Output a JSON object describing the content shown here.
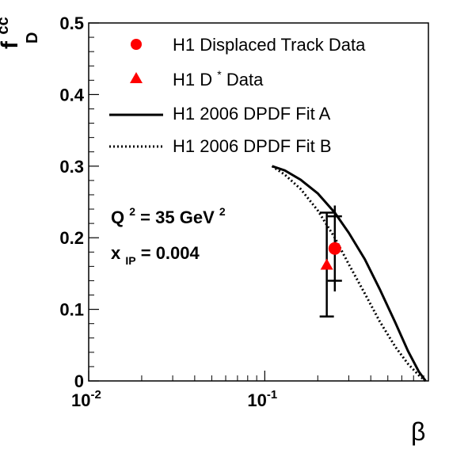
{
  "chart_data": {
    "type": "scatter",
    "ylabel": {
      "base": "f",
      "sup": "cc̄",
      "sub": "D"
    },
    "xlabel": "β",
    "x_scale": "log",
    "xlim": [
      0.01,
      0.85
    ],
    "ylim": [
      0,
      0.5
    ],
    "x_ticks": [
      {
        "value": 0.01,
        "base": "10",
        "exp": "-2"
      },
      {
        "value": 0.1,
        "base": "10",
        "exp": "-1"
      }
    ],
    "y_ticks": [
      {
        "value": 0,
        "label": "0"
      },
      {
        "value": 0.1,
        "label": "0.1"
      },
      {
        "value": 0.2,
        "label": "0.2"
      },
      {
        "value": 0.3,
        "label": "0.3"
      },
      {
        "value": 0.4,
        "label": "0.4"
      },
      {
        "value": 0.5,
        "label": "0.5"
      }
    ],
    "legend": [
      {
        "label": "H1 Displaced Track Data",
        "marker": "circle",
        "color": "#ff0000"
      },
      {
        "label_base": "H1 D",
        "label_sup": "*",
        "label_tail": " Data",
        "marker": "triangle",
        "color": "#ff0000"
      },
      {
        "label": "H1 2006 DPDF Fit A",
        "line": "solid",
        "color": "#000000"
      },
      {
        "label": "H1 2006 DPDF Fit B",
        "line": "dotted",
        "color": "#000000"
      }
    ],
    "annotations": [
      {
        "parts": [
          "Q",
          "2",
          " = 35 GeV",
          "2"
        ],
        "kind": "q2"
      },
      {
        "parts": [
          "x",
          "IP",
          " = 0.004"
        ],
        "kind": "xip"
      }
    ],
    "series": [
      {
        "kind": "circle",
        "color": "#ff0000",
        "points": [
          {
            "x": 0.25,
            "y": 0.185,
            "y_err_inner": [
              0.14,
              0.23
            ],
            "y_err_outer": [
              0.125,
              0.245
            ]
          }
        ]
      },
      {
        "kind": "triangle",
        "color": "#ff0000",
        "points": [
          {
            "x": 0.225,
            "y": 0.162,
            "y_err_outer": [
              0.09,
              0.235
            ]
          }
        ]
      },
      {
        "kind": "line",
        "style": "solid",
        "color": "#000000",
        "x": [
          0.11,
          0.13,
          0.16,
          0.2,
          0.25,
          0.3,
          0.37,
          0.45,
          0.55,
          0.65,
          0.75,
          0.82
        ],
        "y": [
          0.3,
          0.294,
          0.281,
          0.262,
          0.235,
          0.207,
          0.17,
          0.128,
          0.082,
          0.042,
          0.013,
          0.0
        ]
      },
      {
        "kind": "line",
        "style": "dotted",
        "color": "#000000",
        "x": [
          0.11,
          0.13,
          0.16,
          0.2,
          0.25,
          0.3,
          0.37,
          0.45,
          0.55,
          0.65,
          0.75,
          0.82
        ],
        "y": [
          0.3,
          0.288,
          0.268,
          0.238,
          0.2,
          0.163,
          0.122,
          0.083,
          0.048,
          0.024,
          0.008,
          0.0
        ]
      }
    ]
  }
}
